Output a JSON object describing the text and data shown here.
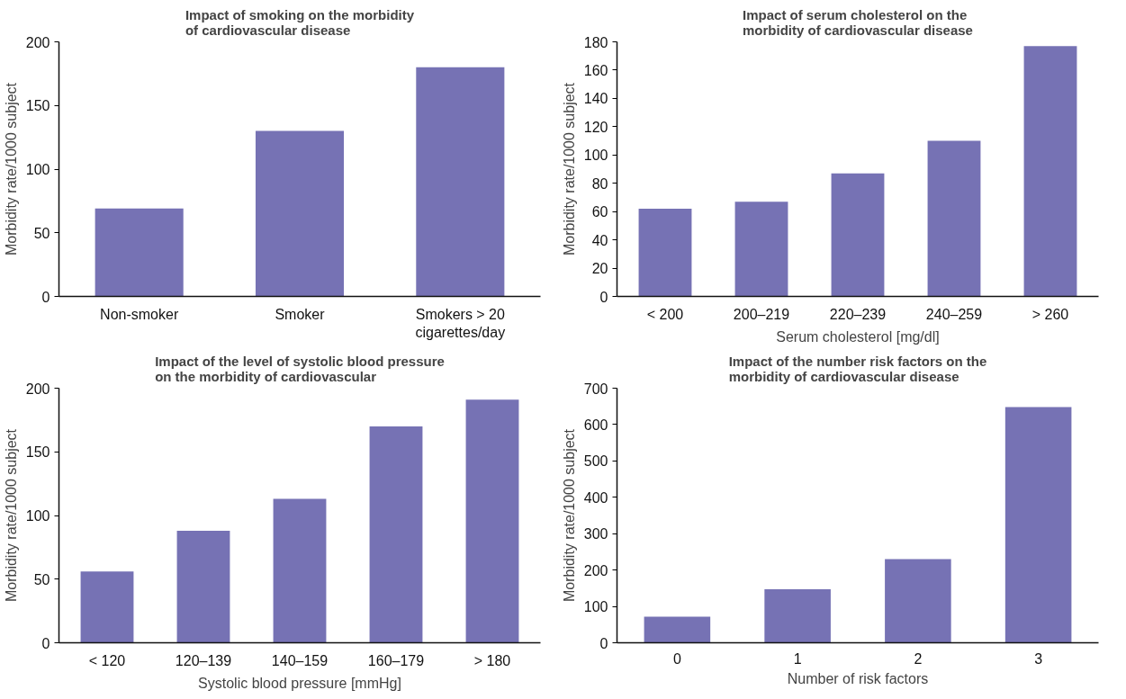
{
  "chart_data": [
    {
      "type": "bar",
      "title": "Impact of smoking on the morbidity\nof cardiovascular disease",
      "ylabel": "Morbidity rate/1000 subject",
      "categories": [
        "Non-smoker",
        "Smoker",
        "Smokers > 20\ncigarettes/day"
      ],
      "values": [
        69,
        130,
        180
      ],
      "color": "#7672b4",
      "ylim": [
        0,
        200
      ],
      "yticks": [
        0,
        50,
        100,
        150,
        200
      ],
      "grid": false
    },
    {
      "type": "bar",
      "title": "Impact of serum cholesterol on the\nmorbidity of cardiovascular disease",
      "ylabel": "Morbidity rate/1000 subject",
      "xlabel": "Serum cholesterol [mg/dl]",
      "categories": [
        "< 200",
        "200–219",
        "220–239",
        "240–259",
        "> 260"
      ],
      "values": [
        62,
        67,
        87,
        110,
        177
      ],
      "color": "#7672b4",
      "ylim": [
        0,
        180
      ],
      "yticks": [
        0,
        20,
        40,
        60,
        80,
        100,
        120,
        140,
        160,
        180
      ],
      "grid": false
    },
    {
      "type": "bar",
      "title": "Impact of the level of systolic blood pressure\non the morbidity of cardiovascular",
      "ylabel": "Morbidity rate/1000 subject",
      "xlabel": "Systolic blood pressure [mmHg]",
      "categories": [
        "< 120",
        "120–139",
        "140–159",
        "160–179",
        "> 180"
      ],
      "values": [
        56,
        88,
        113,
        170,
        191
      ],
      "color": "#7672b4",
      "ylim": [
        0,
        200
      ],
      "yticks": [
        0,
        50,
        100,
        150,
        200
      ],
      "grid": false
    },
    {
      "type": "bar",
      "title": "Impact of the number risk factors on the\nmorbidity of cardiovascular disease",
      "ylabel": "Morbidity rate/1000 subject",
      "xlabel": "Number of risk factors",
      "categories": [
        "0",
        "1",
        "2",
        "3"
      ],
      "values": [
        72,
        147,
        230,
        648
      ],
      "color": "#7672b4",
      "ylim": [
        0,
        700
      ],
      "yticks": [
        0,
        100,
        200,
        300,
        400,
        500,
        600,
        700
      ],
      "grid": false
    }
  ]
}
